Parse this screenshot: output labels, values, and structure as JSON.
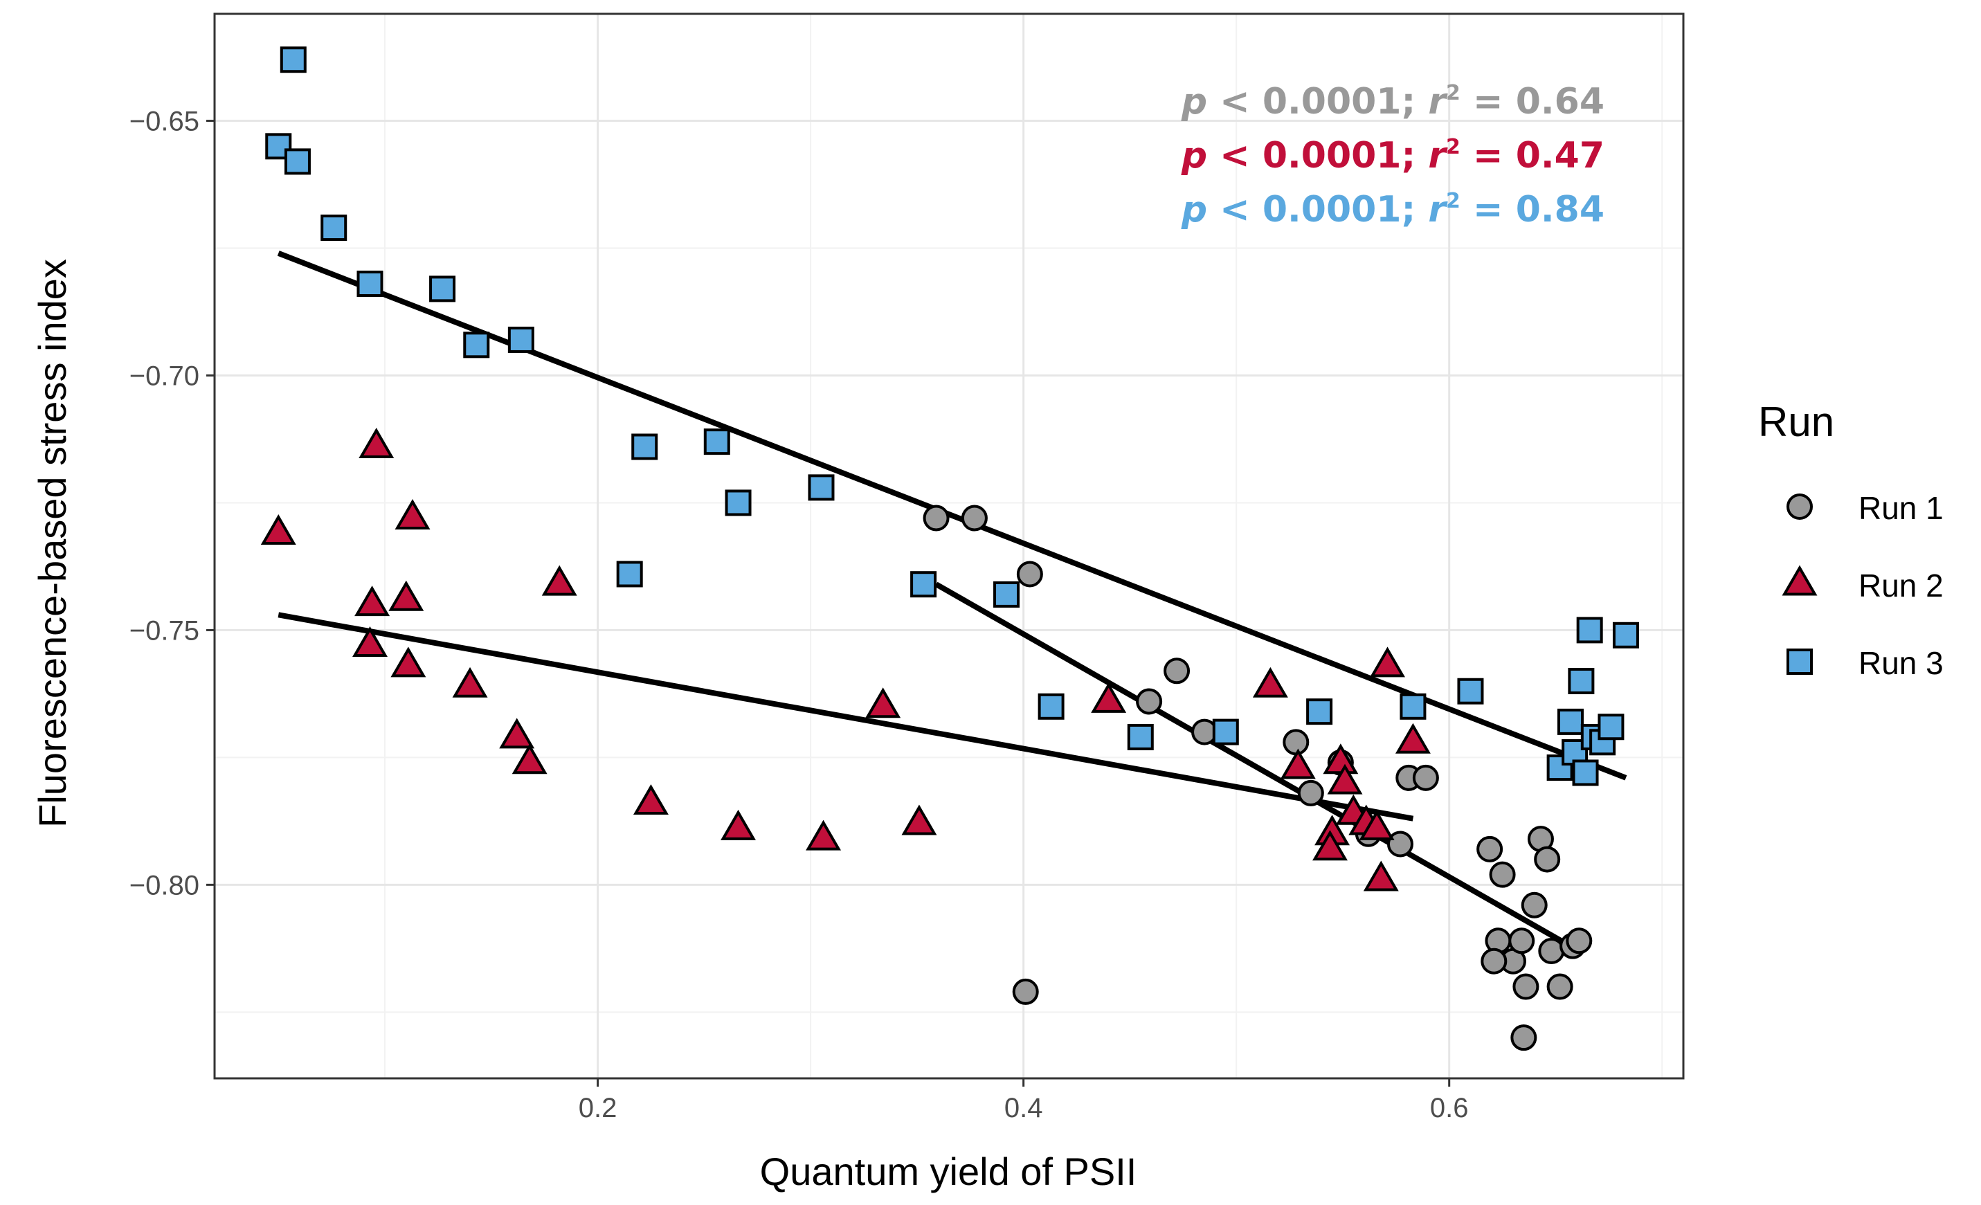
{
  "chart_data": {
    "type": "scatter",
    "title": "",
    "xlabel": "Quantum yield of PSII",
    "ylabel": "Fluorescence-based stress index",
    "xlim": [
      0.02,
      0.71
    ],
    "ylim": [
      -0.838,
      -0.629
    ],
    "xticks": [
      0.2,
      0.4,
      0.6
    ],
    "xtick_labels": [
      "0.2",
      "0.4",
      "0.6"
    ],
    "yticks": [
      -0.65,
      -0.7,
      -0.75,
      -0.8
    ],
    "ytick_labels": [
      "−0.65",
      "−0.70",
      "−0.75",
      "−0.80"
    ],
    "grid": true,
    "legend": {
      "title": "Run",
      "position": "right",
      "entries": [
        {
          "label": "Run 1",
          "shape": "circle",
          "color": "#999999"
        },
        {
          "label": "Run 2",
          "shape": "triangle",
          "color": "#c10f3a"
        },
        {
          "label": "Run 3",
          "shape": "square",
          "color": "#5aa8df"
        }
      ]
    },
    "annotations": [
      {
        "p": "p",
        "rest": " < 0.0001; ",
        "r": "r",
        "sup": "2",
        "tail": " = 0.64",
        "color": "#999999"
      },
      {
        "p": "p",
        "rest": " < 0.0001; ",
        "r": "r",
        "sup": "2",
        "tail": " = 0.47",
        "color": "#c10f3a"
      },
      {
        "p": "p",
        "rest": " < 0.0001; ",
        "r": "r",
        "sup": "2",
        "tail": " = 0.84",
        "color": "#5aa8df"
      }
    ],
    "series": [
      {
        "name": "Run 1",
        "shape": "circle",
        "color": "#999999",
        "points": [
          [
            0.359,
            -0.728
          ],
          [
            0.377,
            -0.728
          ],
          [
            0.403,
            -0.739
          ],
          [
            0.401,
            -0.821
          ],
          [
            0.459,
            -0.764
          ],
          [
            0.472,
            -0.758
          ],
          [
            0.485,
            -0.77
          ],
          [
            0.528,
            -0.772
          ],
          [
            0.535,
            -0.782
          ],
          [
            0.549,
            -0.776
          ],
          [
            0.562,
            -0.79
          ],
          [
            0.577,
            -0.792
          ],
          [
            0.581,
            -0.779
          ],
          [
            0.589,
            -0.779
          ],
          [
            0.619,
            -0.793
          ],
          [
            0.625,
            -0.798
          ],
          [
            0.623,
            -0.811
          ],
          [
            0.63,
            -0.815
          ],
          [
            0.621,
            -0.815
          ],
          [
            0.634,
            -0.811
          ],
          [
            0.636,
            -0.82
          ],
          [
            0.64,
            -0.804
          ],
          [
            0.643,
            -0.791
          ],
          [
            0.646,
            -0.795
          ],
          [
            0.648,
            -0.813
          ],
          [
            0.652,
            -0.82
          ],
          [
            0.635,
            -0.83
          ],
          [
            0.658,
            -0.812
          ],
          [
            0.661,
            -0.811
          ]
        ]
      },
      {
        "name": "Run 2",
        "shape": "triangle",
        "color": "#c10f3a",
        "points": [
          [
            0.05,
            -0.731
          ],
          [
            0.094,
            -0.745
          ],
          [
            0.096,
            -0.714
          ],
          [
            0.093,
            -0.753
          ],
          [
            0.11,
            -0.744
          ],
          [
            0.113,
            -0.728
          ],
          [
            0.111,
            -0.757
          ],
          [
            0.14,
            -0.761
          ],
          [
            0.162,
            -0.771
          ],
          [
            0.168,
            -0.776
          ],
          [
            0.182,
            -0.741
          ],
          [
            0.225,
            -0.784
          ],
          [
            0.266,
            -0.789
          ],
          [
            0.306,
            -0.791
          ],
          [
            0.334,
            -0.765
          ],
          [
            0.351,
            -0.788
          ],
          [
            0.44,
            -0.764
          ],
          [
            0.516,
            -0.761
          ],
          [
            0.529,
            -0.777
          ],
          [
            0.545,
            -0.79
          ],
          [
            0.544,
            -0.793
          ],
          [
            0.549,
            -0.776
          ],
          [
            0.551,
            -0.78
          ],
          [
            0.555,
            -0.786
          ],
          [
            0.561,
            -0.788
          ],
          [
            0.566,
            -0.789
          ],
          [
            0.568,
            -0.799
          ],
          [
            0.571,
            -0.757
          ],
          [
            0.583,
            -0.772
          ]
        ]
      },
      {
        "name": "Run 3",
        "shape": "square",
        "color": "#5aa8df",
        "points": [
          [
            0.057,
            -0.638
          ],
          [
            0.05,
            -0.655
          ],
          [
            0.059,
            -0.658
          ],
          [
            0.076,
            -0.671
          ],
          [
            0.093,
            -0.682
          ],
          [
            0.127,
            -0.683
          ],
          [
            0.143,
            -0.694
          ],
          [
            0.164,
            -0.693
          ],
          [
            0.215,
            -0.739
          ],
          [
            0.222,
            -0.714
          ],
          [
            0.256,
            -0.713
          ],
          [
            0.266,
            -0.725
          ],
          [
            0.305,
            -0.722
          ],
          [
            0.353,
            -0.741
          ],
          [
            0.392,
            -0.743
          ],
          [
            0.413,
            -0.765
          ],
          [
            0.455,
            -0.771
          ],
          [
            0.495,
            -0.77
          ],
          [
            0.539,
            -0.766
          ],
          [
            0.583,
            -0.765
          ],
          [
            0.61,
            -0.762
          ],
          [
            0.652,
            -0.777
          ],
          [
            0.657,
            -0.768
          ],
          [
            0.659,
            -0.774
          ],
          [
            0.662,
            -0.76
          ],
          [
            0.664,
            -0.778
          ],
          [
            0.666,
            -0.75
          ],
          [
            0.668,
            -0.771
          ],
          [
            0.672,
            -0.772
          ],
          [
            0.676,
            -0.769
          ],
          [
            0.683,
            -0.751
          ]
        ]
      }
    ],
    "fit_lines": [
      {
        "name": "Run 1 fit",
        "x": [
          0.359,
          0.661
        ],
        "y": [
          -0.741,
          -0.813
        ]
      },
      {
        "name": "Run 2 fit",
        "x": [
          0.05,
          0.583
        ],
        "y": [
          -0.747,
          -0.787
        ]
      },
      {
        "name": "Run 3 fit",
        "x": [
          0.05,
          0.683
        ],
        "y": [
          -0.676,
          -0.779
        ]
      }
    ]
  }
}
